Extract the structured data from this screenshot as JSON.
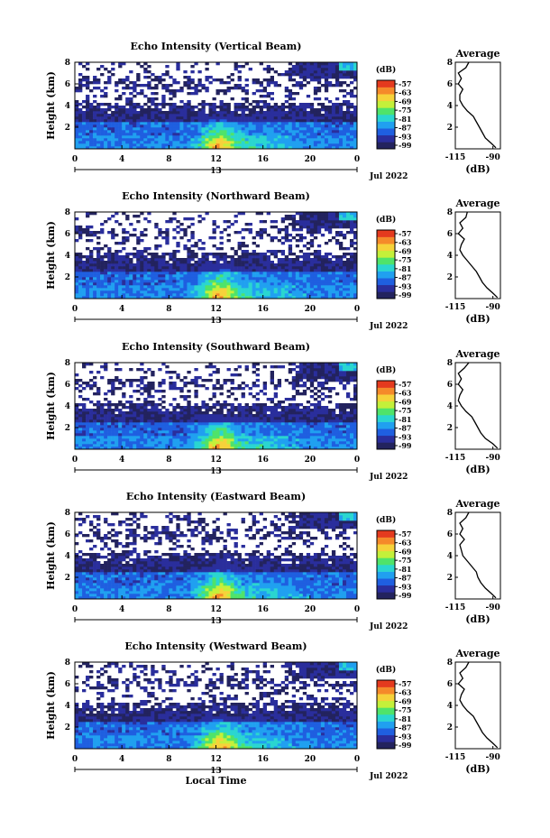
{
  "figure": {
    "x_common_label": "Local Time",
    "date_label": "Jul 2022",
    "day_label": "13",
    "y_label": "Height (km)",
    "colorbar_unit": "(dB)",
    "average_title": "Average",
    "average_xlabel": "(dB)"
  },
  "colorbar": {
    "ticks": [
      "-57",
      "-63",
      "-69",
      "-75",
      "-81",
      "-87",
      "-93",
      "-99"
    ],
    "colors": [
      "#23235e",
      "#2a2e9c",
      "#1f5fe0",
      "#20a0f0",
      "#2ad6d0",
      "#4fe36a",
      "#c4f03a",
      "#f6d23a",
      "#f58a2a",
      "#e43a1e"
    ]
  },
  "chart_data": [
    {
      "type": "heatmap",
      "title": "Echo Intensity (Vertical Beam)",
      "xlabel": "",
      "ylabel": "Height (km)",
      "xlim": [
        0,
        24
      ],
      "ylim": [
        0,
        8
      ],
      "x_ticks": [
        "0",
        "4",
        "8",
        "12",
        "16",
        "20",
        "0"
      ],
      "y_ticks": [
        "2",
        "4",
        "6",
        "8"
      ],
      "colorbar_label": "(dB)",
      "colorbar_range": [
        -99,
        -57
      ],
      "average_profile": {
        "title": "Average",
        "xlabel": "(dB)",
        "x_ticks": [
          "-115",
          "-90"
        ],
        "xlim": [
          -115,
          -85
        ],
        "ylim": [
          0,
          8
        ],
        "height": [
          0.1,
          0.5,
          1.0,
          1.5,
          2.0,
          2.5,
          3.0,
          3.5,
          4.0,
          4.5,
          5.0,
          5.5,
          6.0,
          6.5,
          7.0,
          7.5,
          8.0
        ],
        "value": [
          -88,
          -91,
          -95,
          -97,
          -99,
          -101,
          -103,
          -107,
          -110,
          -112,
          -112,
          -110,
          -113,
          -111,
          -113,
          -108,
          -106
        ]
      }
    },
    {
      "type": "heatmap",
      "title": "Echo Intensity (Northward Beam)",
      "xlabel": "",
      "ylabel": "Height (km)",
      "xlim": [
        0,
        24
      ],
      "ylim": [
        0,
        8
      ],
      "x_ticks": [
        "0",
        "4",
        "8",
        "12",
        "16",
        "20",
        "0"
      ],
      "y_ticks": [
        "2",
        "4",
        "6",
        "8"
      ],
      "colorbar_label": "(dB)",
      "colorbar_range": [
        -99,
        -57
      ],
      "average_profile": {
        "title": "Average",
        "xlabel": "(dB)",
        "x_ticks": [
          "-115",
          "-90"
        ],
        "xlim": [
          -115,
          -85
        ],
        "ylim": [
          0,
          8
        ],
        "height": [
          0.1,
          0.5,
          1.0,
          1.5,
          2.0,
          2.5,
          3.0,
          3.5,
          4.0,
          4.5,
          5.0,
          5.5,
          6.0,
          6.5,
          7.0,
          7.5,
          8.0
        ],
        "value": [
          -87,
          -90,
          -94,
          -97,
          -99,
          -101,
          -104,
          -107,
          -110,
          -112,
          -111,
          -109,
          -113,
          -110,
          -112,
          -108,
          -107
        ]
      }
    },
    {
      "type": "heatmap",
      "title": "Echo Intensity (Southward Beam)",
      "xlabel": "",
      "ylabel": "Height (km)",
      "xlim": [
        0,
        24
      ],
      "ylim": [
        0,
        8
      ],
      "x_ticks": [
        "0",
        "4",
        "8",
        "12",
        "16",
        "20",
        "0"
      ],
      "y_ticks": [
        "2",
        "4",
        "6",
        "8"
      ],
      "colorbar_label": "(dB)",
      "colorbar_range": [
        -99,
        -57
      ],
      "average_profile": {
        "title": "Average",
        "xlabel": "(dB)",
        "x_ticks": [
          "-115",
          "-90"
        ],
        "xlim": [
          -115,
          -85
        ],
        "ylim": [
          0,
          8
        ],
        "height": [
          0.1,
          0.5,
          1.0,
          1.5,
          2.0,
          2.5,
          3.0,
          3.5,
          4.0,
          4.5,
          5.0,
          5.5,
          6.0,
          6.5,
          7.0,
          7.5,
          8.0
        ],
        "value": [
          -87,
          -90,
          -95,
          -98,
          -100,
          -102,
          -104,
          -108,
          -111,
          -113,
          -112,
          -110,
          -113,
          -111,
          -113,
          -109,
          -106
        ]
      }
    },
    {
      "type": "heatmap",
      "title": "Echo Intensity (Eastward Beam)",
      "xlabel": "",
      "ylabel": "Height (km)",
      "xlim": [
        0,
        24
      ],
      "ylim": [
        0,
        8
      ],
      "x_ticks": [
        "0",
        "4",
        "8",
        "12",
        "16",
        "20",
        "0"
      ],
      "y_ticks": [
        "2",
        "4",
        "6",
        "8"
      ],
      "colorbar_label": "(dB)",
      "colorbar_range": [
        -99,
        -57
      ],
      "average_profile": {
        "title": "Average",
        "xlabel": "(dB)",
        "x_ticks": [
          "-115",
          "-90"
        ],
        "xlim": [
          -115,
          -85
        ],
        "ylim": [
          0,
          8
        ],
        "height": [
          0.1,
          0.5,
          1.0,
          1.5,
          2.0,
          2.5,
          3.0,
          3.5,
          4.0,
          4.5,
          5.0,
          5.5,
          6.0,
          6.5,
          7.0,
          7.5,
          8.0
        ],
        "value": [
          -88,
          -91,
          -95,
          -98,
          -100,
          -101,
          -104,
          -107,
          -110,
          -111,
          -112,
          -109,
          -112,
          -110,
          -112,
          -108,
          -106
        ]
      }
    },
    {
      "type": "heatmap",
      "title": "Echo Intensity (Westward Beam)",
      "xlabel": "Local Time",
      "ylabel": "Height (km)",
      "xlim": [
        0,
        24
      ],
      "ylim": [
        0,
        8
      ],
      "x_ticks": [
        "0",
        "4",
        "8",
        "12",
        "16",
        "20",
        "0"
      ],
      "y_ticks": [
        "2",
        "4",
        "6",
        "8"
      ],
      "colorbar_label": "(dB)",
      "colorbar_range": [
        -99,
        -57
      ],
      "average_profile": {
        "title": "Average",
        "xlabel": "(dB)",
        "x_ticks": [
          "-115",
          "-90"
        ],
        "xlim": [
          -115,
          -85
        ],
        "ylim": [
          0,
          8
        ],
        "height": [
          0.1,
          0.5,
          1.0,
          1.5,
          2.0,
          2.5,
          3.0,
          3.5,
          4.0,
          4.5,
          5.0,
          5.5,
          6.0,
          6.5,
          7.0,
          7.5,
          8.0
        ],
        "value": [
          -87,
          -90,
          -94,
          -97,
          -99,
          -101,
          -103,
          -107,
          -110,
          -112,
          -111,
          -109,
          -113,
          -110,
          -112,
          -108,
          -106
        ]
      }
    }
  ]
}
